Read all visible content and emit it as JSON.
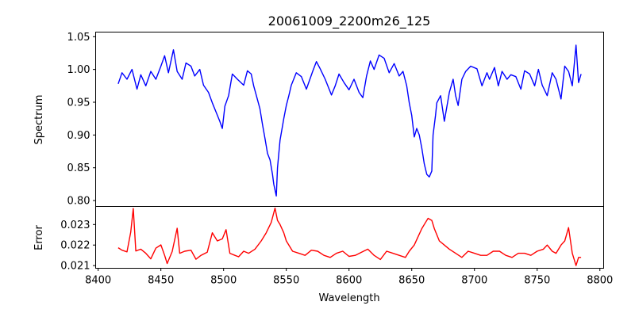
{
  "chart_data": [
    {
      "type": "line",
      "title": "20061009_2200m26_125",
      "xlabel": "",
      "ylabel": "Spectrum",
      "xlim": [
        8398,
        8803
      ],
      "ylim": [
        0.791,
        1.057
      ],
      "yticks": [
        "0.80",
        "0.85",
        "0.90",
        "0.95",
        "1.00",
        "1.05"
      ],
      "color": "#0000ff",
      "series": [
        {
          "name": "Spectrum",
          "x": [
            8416,
            8419,
            8423,
            8427,
            8431,
            8434,
            8438,
            8442,
            8446,
            8450,
            8453,
            8456,
            8460,
            8463,
            8467,
            8470,
            8474,
            8477,
            8481,
            8484,
            8488,
            8491,
            8494,
            8497,
            8499,
            8501,
            8504,
            8507,
            8511,
            8516,
            8519,
            8522,
            8524,
            8526,
            8529,
            8531,
            8533,
            8535,
            8537,
            8539,
            8540,
            8542,
            8543,
            8545,
            8548,
            8550,
            8552,
            8554,
            8558,
            8562,
            8566,
            8571,
            8574,
            8577,
            8581,
            8586,
            8589,
            8592,
            8596,
            8600,
            8604,
            8608,
            8611,
            8614,
            8617,
            8620,
            8624,
            8628,
            8632,
            8636,
            8640,
            8643,
            8646,
            8648,
            8650,
            8652,
            8654,
            8656,
            8658,
            8660,
            8662,
            8664,
            8666,
            8667,
            8669,
            8670,
            8673,
            8676,
            8680,
            8683,
            8685,
            8687,
            8690,
            8693,
            8697,
            8702,
            8706,
            8710,
            8712,
            8716,
            8719,
            8722,
            8726,
            8729,
            8733,
            8737,
            8740,
            8744,
            8748,
            8751,
            8754,
            8758,
            8762,
            8765,
            8769,
            8772,
            8775,
            8778,
            8781,
            8783,
            8785
          ],
          "y": [
            0.978,
            0.995,
            0.985,
            1.0,
            0.97,
            0.992,
            0.975,
            0.997,
            0.985,
            1.005,
            1.021,
            0.995,
            1.03,
            0.997,
            0.985,
            1.01,
            1.005,
            0.99,
            1.0,
            0.976,
            0.965,
            0.949,
            0.935,
            0.921,
            0.91,
            0.944,
            0.96,
            0.993,
            0.985,
            0.976,
            0.998,
            0.993,
            0.975,
            0.961,
            0.94,
            0.916,
            0.895,
            0.872,
            0.862,
            0.84,
            0.825,
            0.807,
            0.85,
            0.892,
            0.925,
            0.945,
            0.96,
            0.976,
            0.995,
            0.989,
            0.97,
            0.997,
            1.012,
            1.001,
            0.985,
            0.961,
            0.975,
            0.993,
            0.98,
            0.969,
            0.985,
            0.965,
            0.957,
            0.99,
            1.013,
            1.0,
            1.022,
            1.017,
            0.995,
            1.009,
            0.99,
            0.997,
            0.975,
            0.949,
            0.93,
            0.897,
            0.91,
            0.9,
            0.88,
            0.856,
            0.84,
            0.836,
            0.845,
            0.9,
            0.93,
            0.949,
            0.96,
            0.921,
            0.965,
            0.985,
            0.96,
            0.945,
            0.985,
            0.997,
            1.005,
            1.001,
            0.975,
            0.995,
            0.985,
            1.003,
            0.975,
            0.997,
            0.985,
            0.992,
            0.989,
            0.97,
            0.998,
            0.993,
            0.975,
            1.0,
            0.976,
            0.96,
            0.995,
            0.985,
            0.955,
            1.005,
            0.997,
            0.975,
            1.037,
            0.98,
            0.993
          ]
        }
      ]
    },
    {
      "type": "line",
      "xlabel": "Wavelength",
      "ylabel": "Error",
      "xlim": [
        8398,
        8803
      ],
      "ylim": [
        0.02087,
        0.02388
      ],
      "xticks": [
        "8400",
        "8450",
        "8500",
        "8550",
        "8600",
        "8650",
        "8700",
        "8750",
        "8800"
      ],
      "yticks": [
        "0.021",
        "0.022",
        "0.023"
      ],
      "color": "#ff0000",
      "series": [
        {
          "name": "Error",
          "x": [
            8416,
            8419,
            8423,
            8426,
            8428,
            8430,
            8434,
            8438,
            8442,
            8446,
            8450,
            8453,
            8455,
            8459,
            8463,
            8465,
            8469,
            8474,
            8478,
            8482,
            8487,
            8491,
            8495,
            8499,
            8502,
            8505,
            8509,
            8512,
            8516,
            8520,
            8525,
            8530,
            8534,
            8538,
            8541,
            8543,
            8545,
            8548,
            8550,
            8555,
            8560,
            8565,
            8570,
            8575,
            8580,
            8585,
            8590,
            8595,
            8600,
            8605,
            8610,
            8615,
            8620,
            8625,
            8630,
            8635,
            8640,
            8645,
            8648,
            8652,
            8655,
            8658,
            8661,
            8663,
            8666,
            8668,
            8672,
            8676,
            8680,
            8685,
            8690,
            8695,
            8700,
            8705,
            8710,
            8715,
            8720,
            8725,
            8730,
            8735,
            8740,
            8745,
            8750,
            8755,
            8758,
            8762,
            8765,
            8769,
            8772,
            8775,
            8778,
            8781,
            8783,
            8785
          ],
          "y": [
            0.02187,
            0.02175,
            0.02167,
            0.02263,
            0.02378,
            0.02171,
            0.0218,
            0.0216,
            0.02133,
            0.02185,
            0.02201,
            0.0215,
            0.0211,
            0.02168,
            0.02282,
            0.0216,
            0.0217,
            0.02175,
            0.02131,
            0.0215,
            0.02165,
            0.0226,
            0.0222,
            0.0223,
            0.02275,
            0.0216,
            0.0215,
            0.02143,
            0.0217,
            0.0216,
            0.0218,
            0.0222,
            0.0226,
            0.0231,
            0.0238,
            0.0232,
            0.023,
            0.0226,
            0.0222,
            0.0217,
            0.0216,
            0.0215,
            0.02175,
            0.0217,
            0.0215,
            0.0214,
            0.0216,
            0.0217,
            0.02145,
            0.0215,
            0.02165,
            0.0218,
            0.0215,
            0.0213,
            0.0217,
            0.0216,
            0.0215,
            0.0214,
            0.0217,
            0.022,
            0.0224,
            0.0228,
            0.0231,
            0.0233,
            0.0232,
            0.0228,
            0.0222,
            0.022,
            0.0218,
            0.0216,
            0.0214,
            0.0217,
            0.0216,
            0.0215,
            0.0215,
            0.0217,
            0.0217,
            0.0215,
            0.0214,
            0.0216,
            0.0216,
            0.0215,
            0.0217,
            0.0218,
            0.022,
            0.0217,
            0.0216,
            0.022,
            0.0222,
            0.02285,
            0.0216,
            0.021,
            0.0214,
            0.0214
          ]
        }
      ]
    }
  ]
}
